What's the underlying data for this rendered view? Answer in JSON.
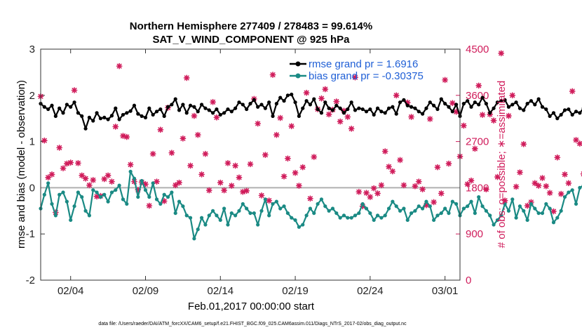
{
  "chart_data": {
    "type": "line",
    "title_line1": "Northern Hemisphere 277409 / 278483 = 99.614%",
    "title_line2": "SAT_V_WIND_COMPONENT @ 925 hPa",
    "xlabel": "Feb.01,2017 00:00:00 start",
    "ylabel_left": "rmse and bias (model - observation)",
    "ylabel_right": "# of obs: o=possible; ∗=assimilated",
    "footer": "data file: /Users/raeder/DAI/ATM_forcXX/CAM6_setup/f.e21.FHIST_BGC.f09_025.CAM6assim.011/Diags_NTrS_2017-02/obs_diag_output.nc",
    "xlim": [
      1,
      29
    ],
    "ylim_left": [
      -2,
      3
    ],
    "ylim_right": [
      0,
      4500
    ],
    "x_ticks": [
      3,
      8,
      13,
      18,
      23,
      28
    ],
    "x_tick_labels": [
      "02/04",
      "02/09",
      "02/14",
      "02/19",
      "02/24",
      "03/01"
    ],
    "y_ticks_left": [
      -2,
      -1,
      0,
      1,
      2,
      3
    ],
    "y_ticks_right": [
      0,
      900,
      1800,
      2700,
      3600,
      4500
    ],
    "zero_line": 0,
    "colors": {
      "rmse": "#000000",
      "bias": "#1a8a84",
      "obs": "#d01c5b",
      "legend_text": "#1f5fd6",
      "zero_line": "#b0b0b0"
    },
    "legend": [
      "rmse grand pr = 1.6916",
      "bias grand pr = -0.30375"
    ],
    "legend_position": "top-right",
    "x_start": 1.0,
    "x_step": 0.25,
    "series": [
      {
        "name": "rmse grand pr = 1.6916",
        "axis": "left",
        "values": [
          1.82,
          1.75,
          1.7,
          1.78,
          1.55,
          1.72,
          1.62,
          1.8,
          1.75,
          1.85,
          1.62,
          1.55,
          1.28,
          1.52,
          1.45,
          1.62,
          1.5,
          1.52,
          1.48,
          1.56,
          1.72,
          1.48,
          1.58,
          1.62,
          1.66,
          1.78,
          1.6,
          1.55,
          1.52,
          1.72,
          1.58,
          1.65,
          1.7,
          1.55,
          1.75,
          1.8,
          1.92,
          1.68,
          1.8,
          1.62,
          1.78,
          1.75,
          1.65,
          1.8,
          1.72,
          1.68,
          1.62,
          1.7,
          1.58,
          1.62,
          1.7,
          1.65,
          1.72,
          1.85,
          1.8,
          1.7,
          1.82,
          1.9,
          1.75,
          1.8,
          1.72,
          1.85,
          1.55,
          1.82,
          1.95,
          1.88,
          2.0,
          2.02,
          1.85,
          1.55,
          1.72,
          1.88,
          1.8,
          1.92,
          1.7,
          1.62,
          1.85,
          1.72,
          1.68,
          1.78,
          1.72,
          1.62,
          1.7,
          1.85,
          1.68,
          1.72,
          1.7,
          1.65,
          1.7,
          1.58,
          1.72,
          1.65,
          1.62,
          1.72,
          1.75,
          1.6,
          1.85,
          1.9,
          1.78,
          1.75,
          1.72,
          1.65,
          1.6,
          1.72,
          1.85,
          1.78,
          1.7,
          1.92,
          1.82,
          1.75,
          1.65,
          1.8,
          1.55,
          1.82,
          1.88,
          1.75,
          1.85,
          1.8,
          1.95,
          1.82,
          1.62,
          1.72,
          1.85,
          1.88,
          1.9,
          1.75,
          1.8,
          1.85,
          1.72,
          1.68,
          1.82,
          1.88,
          1.8,
          1.92,
          1.75,
          1.7,
          1.55,
          1.62,
          1.5,
          1.58,
          1.68,
          1.7,
          1.58,
          1.65,
          1.62,
          1.72,
          1.8,
          1.78,
          1.65,
          1.92,
          1.75,
          1.85,
          1.7,
          1.8,
          1.72,
          1.68,
          1.6,
          1.78,
          1.72,
          1.8,
          1.75,
          1.85,
          1.7,
          1.55,
          1.62,
          1.52,
          1.6,
          1.55,
          1.5,
          1.58,
          1.68,
          1.6,
          1.72,
          1.65,
          1.65,
          1.7,
          1.72
        ]
      },
      {
        "name": "bias grand pr = -0.30375",
        "axis": "left",
        "values": [
          -0.45,
          -0.15,
          0.1,
          -0.35,
          -0.6,
          -0.15,
          -0.1,
          -0.3,
          -0.7,
          -0.4,
          -0.1,
          -0.2,
          -0.5,
          -0.6,
          -0.05,
          -0.1,
          -0.2,
          -0.15,
          -0.3,
          -0.1,
          -0.05,
          0.05,
          -0.25,
          -0.35,
          0.35,
          0.2,
          -0.2,
          0.15,
          -0.05,
          -0.2,
          0.1,
          -0.25,
          -0.35,
          -0.15,
          -0.2,
          -0.1,
          -0.55,
          -0.3,
          -0.4,
          -0.6,
          -0.65,
          -1.1,
          -0.9,
          -0.65,
          -0.8,
          -0.6,
          -0.5,
          -0.6,
          -0.7,
          -0.45,
          -0.8,
          -0.55,
          -0.6,
          -0.5,
          -0.35,
          -0.45,
          -0.55,
          -0.55,
          -0.8,
          -0.5,
          -0.25,
          -0.6,
          -0.35,
          -0.3,
          -0.45,
          -0.4,
          -0.55,
          -0.65,
          -0.7,
          -0.85,
          -0.8,
          -0.6,
          -0.45,
          -0.55,
          -0.35,
          -0.25,
          -0.4,
          -0.5,
          -0.45,
          -0.55,
          -0.65,
          -0.6,
          -0.65,
          -0.65,
          -0.6,
          -0.55,
          -0.35,
          -0.45,
          -0.55,
          -0.7,
          -0.6,
          -0.65,
          -0.6,
          -0.45,
          -0.3,
          -0.4,
          -0.5,
          -0.45,
          -0.7,
          -0.55,
          -0.5,
          -0.4,
          -0.45,
          -0.3,
          -0.4,
          -0.7,
          -0.6,
          -0.55,
          -0.45,
          -0.55,
          -0.3,
          -0.35,
          -0.6,
          -0.45,
          -0.4,
          -0.3,
          -0.55,
          -0.2,
          -0.4,
          -0.5,
          -0.6,
          -0.8,
          -0.7,
          -0.6,
          -0.35,
          -0.5,
          -0.25,
          -0.65,
          -0.4,
          -0.5,
          -0.7,
          -0.35,
          -0.45,
          -0.55,
          -0.55,
          -0.35,
          -0.45,
          -0.75,
          -0.65,
          -0.5,
          -0.2,
          -0.1,
          -0.05,
          -0.35,
          0.0,
          0.05,
          0.15,
          -0.2,
          0.1,
          0.2,
          -0.1,
          0.0,
          -0.25,
          0.0,
          0.0,
          -0.1,
          0.05,
          0.1,
          0.0,
          -0.2,
          -0.1,
          -0.05,
          0.05,
          -0.15,
          0.0,
          -0.1,
          0.25,
          0.3,
          0.15,
          0.0,
          -0.15,
          -0.1,
          0.0,
          0.05,
          -0.05,
          0.05,
          0.3,
          0.15,
          0.45,
          0.65,
          0.25,
          0.25
        ]
      },
      {
        "name": "assimilated",
        "axis": "right",
        "values": [
          3580,
          2720,
          2000,
          2060,
          1320,
          2580,
          2180,
          2270,
          2290,
          3700,
          2280,
          2040,
          1980,
          1850,
          1950,
          1630,
          1640,
          1970,
          2040,
          1920,
          2990,
          4170,
          2810,
          2790,
          2250,
          1920,
          1760,
          1910,
          1870,
          1450,
          2460,
          1920,
          2930,
          1540,
          3360,
          2480,
          1850,
          1900,
          2760,
          3940,
          2230,
          3200,
          2830,
          2060,
          2460,
          1750,
          3470,
          3170,
          1900,
          1750,
          2280,
          1840,
          2230,
          2000,
          1720,
          1740,
          2260,
          3530,
          3050,
          1650,
          2440,
          1550,
          4000,
          2830,
          3160,
          2020,
          2370,
          3000,
          2090,
          1840,
          2200,
          3650,
          1590,
          2400,
          3330,
          3540,
          3720,
          3230,
          3320,
          3480,
          3090,
          3300,
          3180,
          2950,
          3950,
          1720,
          1440,
          1700,
          1620,
          1790,
          1690,
          1850,
          2510,
          2210,
          2120,
          3600,
          2340,
          1850,
          3460,
          3180,
          1830,
          1920,
          1770,
          1460,
          3140,
          1520,
          2200,
          1690,
          3900,
          2270,
          3450,
          3280,
          2410,
          3010,
          1870,
          1940,
          2560,
          3790,
          3220,
          1770,
          3230,
          3110,
          2010,
          4420,
          1550,
          3200,
          3600,
          1820,
          2100,
          2650,
          1450,
          1520,
          1890,
          1840,
          1990,
          1830,
          1700,
          1340,
          2390,
          1680,
          2060,
          1890,
          3680,
          2730,
          2660,
          2070,
          1460,
          2080,
          2090,
          2120,
          1930,
          1850,
          2020,
          1600,
          1360,
          2510,
          2180,
          2000,
          1950,
          2420,
          1570,
          2100,
          2000,
          2660,
          2030,
          1460,
          2290,
          2600,
          2140,
          1830,
          2430,
          2190,
          3280,
          2010,
          1800,
          1610,
          2140,
          2170,
          1890,
          1930,
          2610,
          2810,
          2150,
          0
        ]
      }
    ]
  }
}
